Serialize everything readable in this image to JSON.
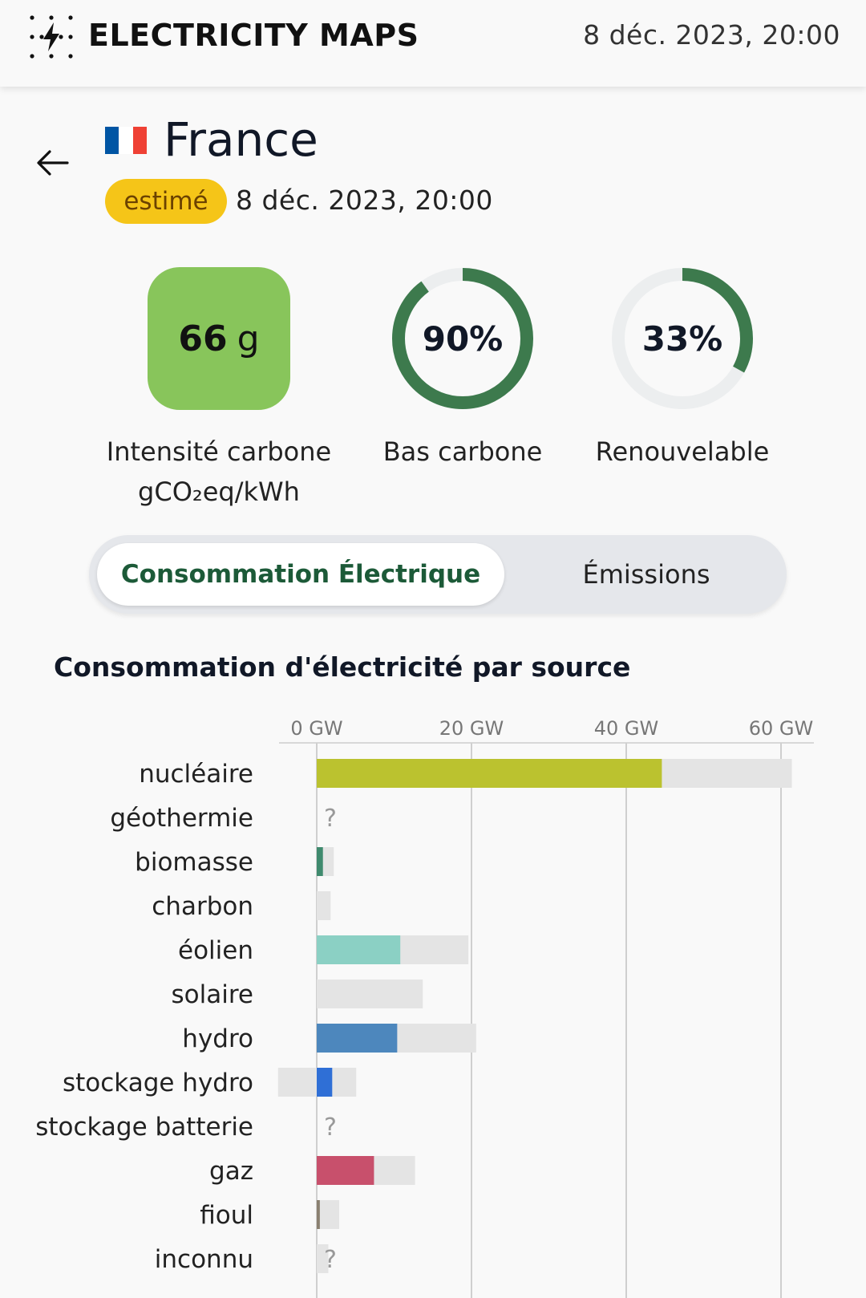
{
  "header": {
    "brand": "ELECTRICITY MAPS",
    "datetime": "8 déc. 2023, 20:00"
  },
  "zone": {
    "country": "France",
    "flag_colors": [
      "#0055a4",
      "#ffffff",
      "#ef4135"
    ],
    "badge": "estimé",
    "datetime": "8 déc. 2023, 20:00"
  },
  "metrics": {
    "carbon_intensity": {
      "value": "66",
      "unit": "g",
      "label_line1": "Intensité carbone",
      "label_line2": "gCO₂eq/kWh",
      "color": "#88c55b"
    },
    "low_carbon": {
      "value": "90%",
      "fraction": 0.9,
      "label": "Bas carbone",
      "color": "#3d7a4d"
    },
    "renewable": {
      "value": "33%",
      "fraction": 0.33,
      "label": "Renouvelable",
      "color": "#3d7a4d"
    }
  },
  "tabs": {
    "active": "Consommation Électrique",
    "inactive": "Émissions"
  },
  "section": {
    "title": "Consommation d'électricité par source"
  },
  "chart_data": {
    "type": "bar",
    "orientation": "horizontal",
    "xlim": [
      0,
      60
    ],
    "ticks": [
      "0 GW",
      "20 GW",
      "40 GW",
      "60 GW"
    ],
    "tick_values": [
      0,
      20,
      40,
      60
    ],
    "categories": [
      "nucléaire",
      "géothermie",
      "biomasse",
      "charbon",
      "éolien",
      "solaire",
      "hydro",
      "stockage hydro",
      "stockage batterie",
      "gaz",
      "fioul",
      "inconnu"
    ],
    "series": [
      {
        "role": "production",
        "values": [
          44.6,
          null,
          0.8,
          0,
          10.8,
          0,
          10.4,
          2.0,
          null,
          7.4,
          0.4,
          0
        ]
      },
      {
        "role": "capacity",
        "values": [
          61.4,
          null,
          2.2,
          1.8,
          19.6,
          13.7,
          20.6,
          5.1,
          null,
          12.7,
          2.9,
          1.5
        ]
      }
    ],
    "capacity_min": [
      0,
      null,
      0,
      0,
      0,
      0,
      0,
      -5.0,
      null,
      0,
      0,
      0
    ],
    "unknown_marker": "?",
    "unknown_flags": [
      false,
      true,
      false,
      false,
      false,
      false,
      false,
      false,
      true,
      false,
      false,
      true
    ],
    "colors": [
      "#bbc22f",
      "#cccccc",
      "#3f8a6e",
      "#888888",
      "#8bd0c4",
      "#f0c040",
      "#4d87bd",
      "#2f6fd6",
      "#999999",
      "#c8506c",
      "#8a8070",
      "#aaaaaa"
    ],
    "capacity_color": "#e4e4e4"
  }
}
